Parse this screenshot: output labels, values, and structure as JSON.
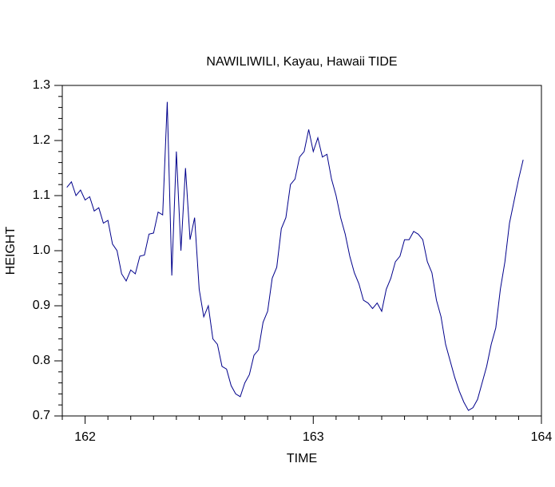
{
  "chart_data": {
    "type": "line",
    "title": "NAWILIWILI, Kayau, Hawaii TIDE",
    "x_label": "TIME",
    "y_label": "HEIGHT",
    "xlim": [
      161.9,
      164.0
    ],
    "ylim": [
      0.7,
      1.3
    ],
    "xticks": [
      162,
      163,
      164
    ],
    "yticks": [
      0.7,
      0.8,
      0.9,
      {
        "value": 1.0,
        "label": "1.0"
      },
      1.1,
      1.2,
      1.3
    ],
    "xminorticks": [
      161.9,
      162.1,
      162.2,
      162.3,
      162.4,
      162.5,
      162.6,
      162.7,
      162.8,
      162.9,
      163.1,
      163.2,
      163.3,
      163.4,
      163.5,
      163.6,
      163.7,
      163.8,
      163.9
    ],
    "yminorticks": [
      0.72,
      0.74,
      0.76,
      0.78,
      0.82,
      0.84,
      0.86,
      0.88,
      0.92,
      0.94,
      0.96,
      0.98,
      1.02,
      1.04,
      1.06,
      1.08,
      1.12,
      1.14,
      1.16,
      1.18,
      1.22,
      1.24,
      1.26,
      1.28
    ],
    "x": [
      161.92,
      161.94,
      161.96,
      161.98,
      162.0,
      162.02,
      162.04,
      162.06,
      162.08,
      162.1,
      162.12,
      162.14,
      162.16,
      162.18,
      162.2,
      162.22,
      162.24,
      162.26,
      162.28,
      162.3,
      162.32,
      162.34,
      162.36,
      162.38,
      162.4,
      162.42,
      162.44,
      162.46,
      162.48,
      162.5,
      162.52,
      162.54,
      162.56,
      162.58,
      162.6,
      162.62,
      162.64,
      162.66,
      162.68,
      162.7,
      162.72,
      162.74,
      162.76,
      162.78,
      162.8,
      162.82,
      162.84,
      162.86,
      162.88,
      162.9,
      162.92,
      162.94,
      162.96,
      162.98,
      163.0,
      163.02,
      163.04,
      163.06,
      163.08,
      163.1,
      163.12,
      163.14,
      163.16,
      163.18,
      163.2,
      163.22,
      163.24,
      163.26,
      163.28,
      163.3,
      163.32,
      163.34,
      163.36,
      163.38,
      163.4,
      163.42,
      163.44,
      163.46,
      163.48,
      163.5,
      163.52,
      163.54,
      163.56,
      163.58,
      163.6,
      163.62,
      163.64,
      163.66,
      163.68,
      163.7,
      163.72,
      163.74,
      163.76,
      163.78,
      163.8,
      163.82,
      163.84,
      163.86,
      163.88,
      163.9,
      163.92
    ],
    "series": [
      {
        "color": "#00008b",
        "values": [
          1.115,
          1.125,
          1.1,
          1.11,
          1.092,
          1.098,
          1.072,
          1.078,
          1.05,
          1.055,
          1.012,
          1.0,
          0.958,
          0.945,
          0.965,
          0.958,
          0.99,
          0.992,
          1.03,
          1.032,
          1.07,
          1.065,
          1.27,
          0.955,
          1.18,
          1.0,
          1.15,
          1.02,
          1.06,
          0.93,
          0.88,
          0.9,
          0.84,
          0.83,
          0.79,
          0.785,
          0.755,
          0.74,
          0.735,
          0.76,
          0.775,
          0.81,
          0.82,
          0.87,
          0.89,
          0.95,
          0.97,
          1.04,
          1.06,
          1.12,
          1.13,
          1.17,
          1.18,
          1.22,
          1.18,
          1.205,
          1.17,
          1.175,
          1.13,
          1.1,
          1.06,
          1.03,
          0.99,
          0.96,
          0.94,
          0.91,
          0.905,
          0.895,
          0.905,
          0.89,
          0.93,
          0.95,
          0.98,
          0.99,
          1.02,
          1.02,
          1.035,
          1.03,
          1.02,
          0.98,
          0.96,
          0.91,
          0.88,
          0.83,
          0.8,
          0.77,
          0.745,
          0.725,
          0.71,
          0.715,
          0.73,
          0.76,
          0.79,
          0.83,
          0.86,
          0.93,
          0.98,
          1.05,
          1.09,
          1.13,
          1.165
        ]
      }
    ]
  }
}
